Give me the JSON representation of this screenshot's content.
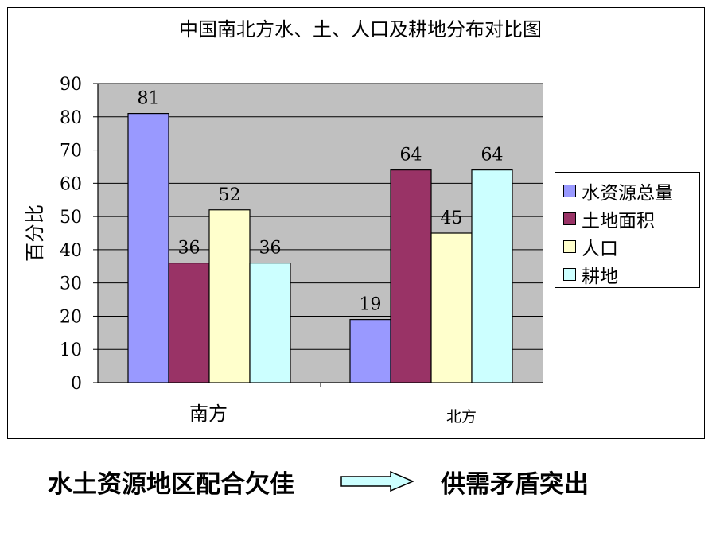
{
  "chart_data": {
    "type": "bar",
    "title": "中国南北方水、土、人口及耕地分布对比图",
    "ylabel": "百分比",
    "xlabel": "",
    "categories": [
      "南方",
      "北方"
    ],
    "ylim": [
      0,
      90
    ],
    "yticks": [
      0,
      10,
      20,
      30,
      40,
      50,
      60,
      70,
      80,
      90
    ],
    "grid": true,
    "legend_position": "right",
    "series": [
      {
        "name": "水资源总量",
        "values": [
          81,
          19
        ],
        "color": "#9999ff"
      },
      {
        "name": "土地面积",
        "values": [
          36,
          64
        ],
        "color": "#993366"
      },
      {
        "name": "人口",
        "values": [
          52,
          45
        ],
        "color": "#ffffcc"
      },
      {
        "name": "耕地",
        "values": [
          36,
          64
        ],
        "color": "#ccffff"
      }
    ]
  },
  "caption": {
    "left": "水土资源地区配合欠佳",
    "arrow_icon": "right-arrow-icon",
    "right": "供需矛盾突出"
  },
  "colors": {
    "plot_background": "#c0c0c0",
    "gridline": "#000000",
    "arrow_fill": "#ccffff"
  }
}
